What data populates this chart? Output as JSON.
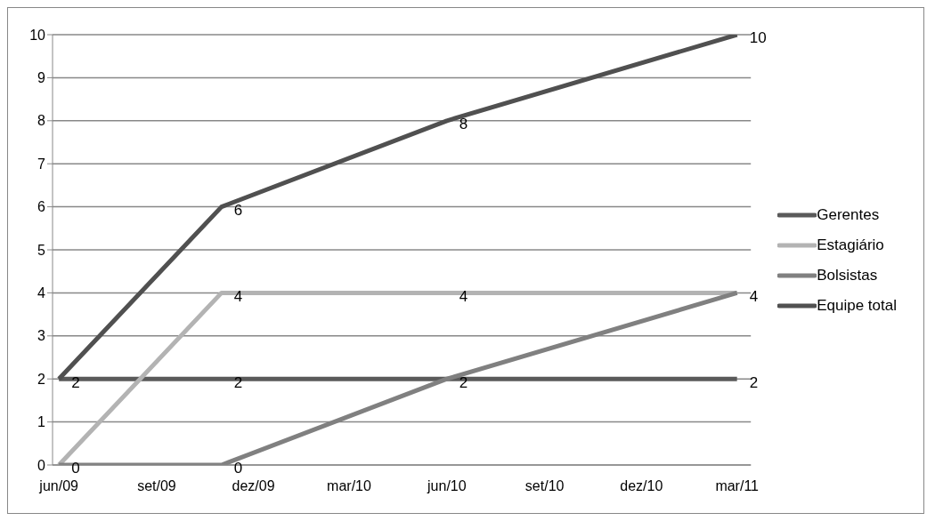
{
  "chart_data": {
    "type": "line",
    "x": [
      "2009-06",
      "2009-11",
      "2010-06",
      "2011-03"
    ],
    "series": [
      {
        "name": "Gerentes",
        "color": "#5a5a5a",
        "values": [
          2,
          2,
          2,
          2
        ],
        "value_labels": [
          "2",
          "2",
          "2",
          "2"
        ]
      },
      {
        "name": "Estagiário",
        "color": "#b3b3b3",
        "values": [
          0,
          4,
          4,
          4
        ],
        "value_labels": [
          "0",
          "4",
          "4",
          "4"
        ]
      },
      {
        "name": "Bolsistas",
        "color": "#808080",
        "values": [
          0,
          0,
          2,
          4
        ],
        "value_labels": [
          null,
          "0",
          null,
          null
        ]
      },
      {
        "name": "Equipe total",
        "color": "#505050",
        "values": [
          2,
          6,
          8,
          10
        ],
        "value_labels": [
          null,
          "6",
          "8",
          "10"
        ]
      }
    ],
    "xlim": [
      "2009-05-26",
      "2011-03-14"
    ],
    "xticks": [
      {
        "value": "2009-06",
        "label": "jun/09"
      },
      {
        "value": "2009-09",
        "label": "set/09"
      },
      {
        "value": "2009-12",
        "label": "dez/09"
      },
      {
        "value": "2010-03",
        "label": "mar/10"
      },
      {
        "value": "2010-06",
        "label": "jun/10"
      },
      {
        "value": "2010-09",
        "label": "set/10"
      },
      {
        "value": "2010-12",
        "label": "dez/10"
      },
      {
        "value": "2011-03",
        "label": "mar/11"
      }
    ],
    "ylim": [
      0,
      10
    ],
    "yticks": [
      0,
      1,
      2,
      3,
      4,
      5,
      6,
      7,
      8,
      9,
      10
    ],
    "grid": "y",
    "legend": "right",
    "marker": "none",
    "line_style": "solid"
  }
}
